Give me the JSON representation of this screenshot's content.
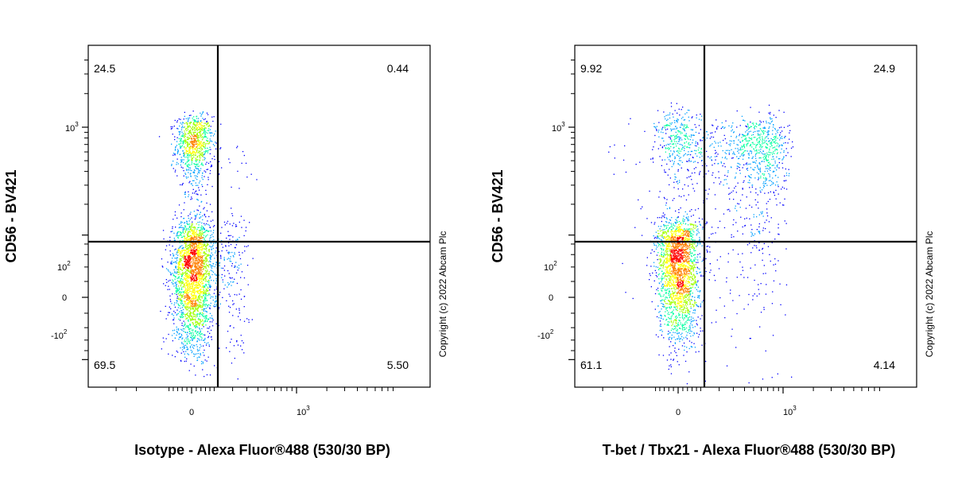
{
  "copyright": "Copyright (c) 2022 Abcam Plc",
  "chart_data": [
    {
      "type": "scatter",
      "subtype": "flow-cytometry-density-dot-plot",
      "xlabel": "Isotype - Alexa Fluor®488 (530/30 BP)",
      "ylabel": "CD56 - BV421",
      "x_scale": "biexponential",
      "y_scale": "biexponential",
      "x_tick_labels": [
        "0",
        "10^3"
      ],
      "y_tick_labels": [
        "10^3",
        "10^2",
        "0",
        "-10^2"
      ],
      "quadrant_gate": {
        "x": 130,
        "y": 250
      },
      "quadrants": {
        "top_left": "24.5",
        "top_right": "0.44",
        "bottom_left": "69.5",
        "bottom_right": "5.50"
      },
      "populations": [
        {
          "weight": 0.245,
          "x_mean": 10,
          "x_sd": 40,
          "y_mean": 700,
          "y_sd": 280
        },
        {
          "weight": 0.695,
          "x_mean": 5,
          "x_sd": 45,
          "y_mean": 30,
          "y_sd": 50
        },
        {
          "weight": 0.055,
          "x_mean": 190,
          "x_sd": 60,
          "y_mean": 40,
          "y_sd": 60
        },
        {
          "weight": 0.005,
          "x_mean": 250,
          "x_sd": 80,
          "y_mean": 400,
          "y_sd": 150
        }
      ],
      "density_colors": [
        "#0000ff",
        "#00a0ff",
        "#00ffa0",
        "#a0ff00",
        "#ffff00",
        "#ff8000",
        "#ff0000"
      ],
      "grid": false,
      "legend": "none"
    },
    {
      "type": "scatter",
      "subtype": "flow-cytometry-density-dot-plot",
      "xlabel": "T-bet / Tbx21 - Alexa Fluor®488 (530/30 BP)",
      "ylabel": "CD56 - BV421",
      "x_scale": "biexponential",
      "y_scale": "biexponential",
      "x_tick_labels": [
        "0",
        "10^3"
      ],
      "y_tick_labels": [
        "10^3",
        "10^2",
        "0",
        "-10^2"
      ],
      "quadrant_gate": {
        "x": 130,
        "y": 250
      },
      "quadrants": {
        "top_left": "9.92",
        "top_right": "24.9",
        "bottom_left": "61.1",
        "bottom_right": "4.14"
      },
      "populations": [
        {
          "weight": 0.099,
          "x_mean": 0,
          "x_sd": 50,
          "y_mean": 700,
          "y_sd": 350
        },
        {
          "weight": 0.249,
          "x_mean": 500,
          "x_sd": 300,
          "y_mean": 600,
          "y_sd": 300
        },
        {
          "weight": 0.611,
          "x_mean": 0,
          "x_sd": 45,
          "y_mean": 40,
          "y_sd": 50
        },
        {
          "weight": 0.041,
          "x_mean": 400,
          "x_sd": 250,
          "y_mean": 80,
          "y_sd": 70
        }
      ],
      "density_colors": [
        "#0000ff",
        "#00a0ff",
        "#00ffa0",
        "#a0ff00",
        "#ffff00",
        "#ff8000",
        "#ff0000"
      ],
      "grid": false,
      "legend": "none"
    }
  ]
}
